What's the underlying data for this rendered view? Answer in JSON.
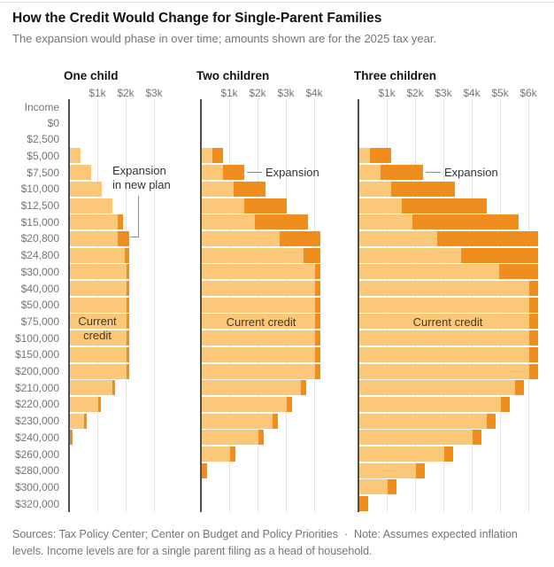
{
  "header": {
    "title": "How the Credit Would Change for Single-Parent Families",
    "subtitle": "The expansion would phase in over time; amounts shown are for the 2025 tax year."
  },
  "footer": {
    "text": "Sources: Tax Policy Center; Center on Budget and Policy Priorities  ·  Note: Assumes expected inflation levels. Income levels are for a single parent filing as a head of household."
  },
  "chart_data": {
    "type": "bar",
    "orientation": "horizontal",
    "units": "dollars",
    "income_axis_label": "Income",
    "categories": [
      "$0",
      "$2,500",
      "$5,000",
      "$7,500",
      "$10,000",
      "$12,500",
      "$15,000",
      "$20,800",
      "$24,800",
      "$30,000",
      "$40,000",
      "$50,000",
      "$75,000",
      "$100,000",
      "$150,000",
      "$200,000",
      "$210,000",
      "$220,000",
      "$230,000",
      "$240,000",
      "$260,000",
      "$280,000",
      "$300,000",
      "$320,000"
    ],
    "colors": {
      "current_credit": "#FAC878",
      "expansion": "#EF8D1F"
    },
    "panels": [
      {
        "title": "One child",
        "tick_labels": [
          "$1k",
          "$2k",
          "$3k"
        ],
        "series": [
          {
            "name": "Current credit",
            "values": [
              0,
              0,
              375,
              750,
              1125,
              1500,
              1700,
              1700,
              1950,
              2000,
              2000,
              2000,
              2000,
              2000,
              2000,
              2000,
              1500,
              1000,
              500,
              0,
              0,
              0,
              0,
              0
            ]
          },
          {
            "name": "New plan total",
            "values": [
              0,
              0,
              375,
              750,
              1125,
              1500,
              1875,
              2100,
              2100,
              2100,
              2100,
              2100,
              2100,
              2100,
              2100,
              2100,
              1600,
              1100,
              600,
              100,
              0,
              0,
              0,
              0
            ]
          }
        ]
      },
      {
        "title": "Two children",
        "tick_labels": [
          "$1k",
          "$2k",
          "$3k",
          "$4k"
        ],
        "series": [
          {
            "name": "Current credit",
            "values": [
              0,
              0,
              375,
              750,
              1125,
              1500,
              1875,
              2745,
              3600,
              4000,
              4000,
              4000,
              4000,
              4000,
              4000,
              4000,
              3500,
              3000,
              2500,
              2000,
              1000,
              0,
              0,
              0
            ]
          },
          {
            "name": "New plan total",
            "values": [
              0,
              0,
              750,
              1500,
              2250,
              3000,
              3750,
              4200,
              4200,
              4200,
              4200,
              4200,
              4200,
              4200,
              4200,
              4200,
              3700,
              3200,
              2700,
              2200,
              1200,
              200,
              0,
              0
            ]
          }
        ]
      },
      {
        "title": "Three children",
        "tick_labels": [
          "$1k",
          "$2k",
          "$3k",
          "$4k",
          "$5k",
          "$6k"
        ],
        "series": [
          {
            "name": "Current credit",
            "values": [
              0,
              0,
              375,
              750,
              1125,
              1500,
              1875,
              2745,
              3600,
              4925,
              6000,
              6000,
              6000,
              6000,
              6000,
              6000,
              5500,
              5000,
              4500,
              4000,
              3000,
              2000,
              1000,
              0
            ]
          },
          {
            "name": "New plan total",
            "values": [
              0,
              0,
              1125,
              2250,
              3375,
              4500,
              5625,
              6300,
              6300,
              6300,
              6300,
              6300,
              6300,
              6300,
              6300,
              6300,
              5800,
              5300,
              4800,
              4300,
              3300,
              2300,
              1300,
              300
            ]
          }
        ]
      }
    ],
    "annotations": [
      {
        "panel": 0,
        "target_income": "$20,800",
        "lines": [
          "Expansion",
          "in new plan"
        ]
      },
      {
        "panel": 1,
        "target_income": "$7,500",
        "lines": [
          "Expansion"
        ]
      },
      {
        "panel": 2,
        "target_income": "$7,500",
        "lines": [
          "Expansion"
        ]
      }
    ],
    "inside_labels": [
      {
        "panel": 0,
        "lines": [
          "Current",
          "credit"
        ]
      },
      {
        "panel": 1,
        "lines": [
          "Current credit"
        ]
      },
      {
        "panel": 2,
        "lines": [
          "Current credit"
        ]
      }
    ]
  }
}
